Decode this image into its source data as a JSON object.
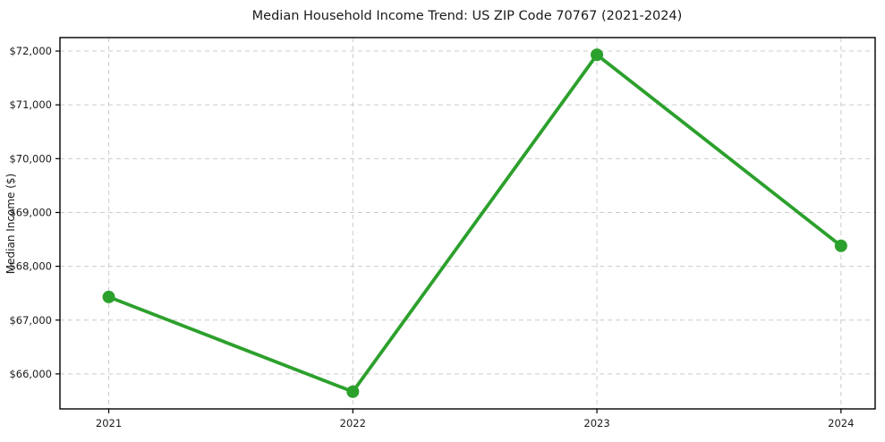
{
  "chart_data": {
    "type": "line",
    "title": "Median Household Income Trend: US ZIP Code 70767 (2021-2024)",
    "xlabel": "",
    "ylabel": "Median Income ($)",
    "x": [
      2021,
      2022,
      2023,
      2024
    ],
    "series": [
      {
        "name": "Median Household Income",
        "values": [
          67430,
          65670,
          71930,
          68380
        ],
        "color": "#2ca02c",
        "marker": "circle"
      }
    ],
    "xticks": {
      "values": [
        2021,
        2022,
        2023,
        2024
      ],
      "labels": [
        "2021",
        "2022",
        "2023",
        "2024"
      ]
    },
    "yticks": {
      "values": [
        66000,
        67000,
        68000,
        69000,
        70000,
        71000,
        72000
      ],
      "labels": [
        "$66,000",
        "$67,000",
        "$68,000",
        "$69,000",
        "$70,000",
        "$71,000",
        "$72,000"
      ]
    },
    "xlim": [
      2020.8,
      2024.14
    ],
    "ylim": [
      65350,
      72250
    ],
    "grid": true,
    "grid_style": "dashed",
    "grid_color": "#cccccc",
    "axis_color": "#000000",
    "tick_label_color": "#1a1a1a",
    "background": "#ffffff",
    "legend": false,
    "legend_position": "none"
  }
}
